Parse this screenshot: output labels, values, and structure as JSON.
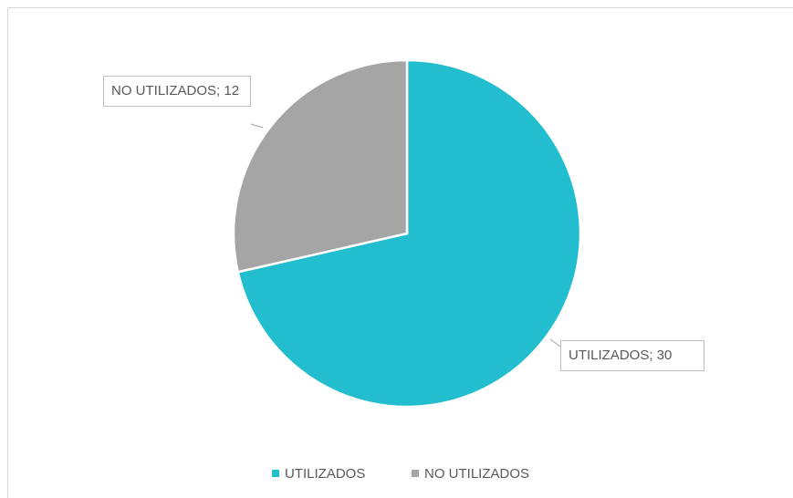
{
  "chart_data": {
    "type": "pie",
    "categories": [
      "UTILIZADOS",
      "NO UTILIZADOS"
    ],
    "values": [
      30,
      12
    ],
    "value_labels": [
      "UTILIZADOS; 30",
      "NO UTILIZADOS; 12"
    ],
    "colors": [
      "#22bdce",
      "#a5a5a5"
    ],
    "legend": "bottom"
  }
}
